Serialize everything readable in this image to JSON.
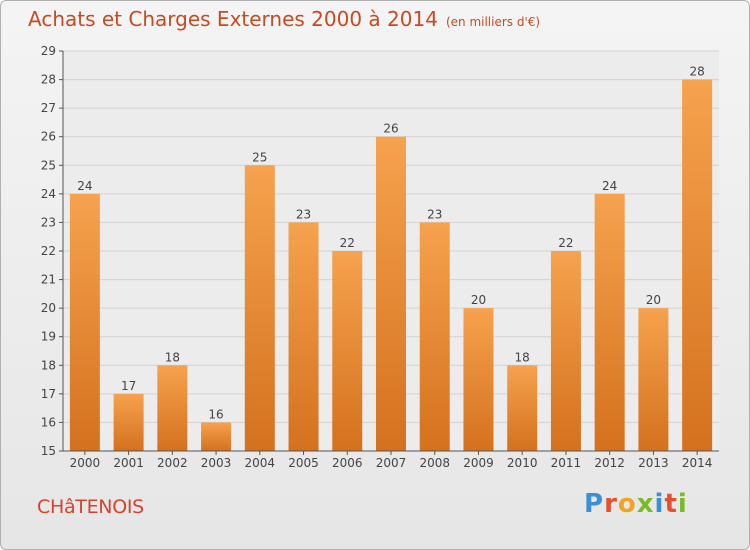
{
  "header": {
    "title": "Achats et Charges Externes 2000 à 2014",
    "unit": "(en milliers d'€)"
  },
  "footer": {
    "town": "CHâTENOIS",
    "logo": "Proxiti"
  },
  "colors": {
    "bar_top": "#f6a24e",
    "bar_bottom": "#d4711e",
    "title": "#c84a22",
    "town": "#d8422c"
  },
  "chart_data": {
    "type": "bar",
    "title": "Achats et Charges Externes 2000 à 2014",
    "subtitle": "(en milliers d'€)",
    "xlabel": "",
    "ylabel": "",
    "categories": [
      "2000",
      "2001",
      "2002",
      "2003",
      "2004",
      "2005",
      "2006",
      "2007",
      "2008",
      "2009",
      "2010",
      "2011",
      "2012",
      "2013",
      "2014"
    ],
    "values": [
      24,
      17,
      18,
      16,
      25,
      23,
      22,
      26,
      23,
      20,
      18,
      22,
      24,
      20,
      28
    ],
    "ylim": [
      15,
      29
    ],
    "yticks": [
      15,
      16,
      17,
      18,
      19,
      20,
      21,
      22,
      23,
      24,
      25,
      26,
      27,
      28,
      29
    ],
    "grid": true,
    "legend": "none"
  }
}
